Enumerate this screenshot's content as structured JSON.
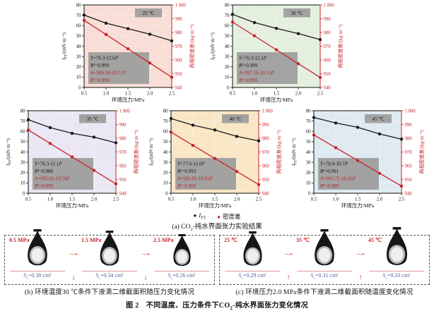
{
  "figure": {
    "panel_a_caption": "(a) CO_[2]-纯水界面张力实验结果",
    "main_caption": "图 2　不同温度、压力条件下CO_[2]-纯水界面张力变化情况"
  },
  "colors": {
    "series_ift": "#1a1a1a",
    "series_density": "#c7232b",
    "axis_red": "#c7232b",
    "annotation_bg": "#9e9e9e",
    "temp_box_bg": "#9e9e9e",
    "grid": "#ffffff",
    "area_text": "#4f639e",
    "arrow": "#c9452a",
    "panel_border": "#555555"
  },
  "legend": {
    "series": [
      {
        "label": "*I*_[FT]",
        "color": "#1a1a1a"
      },
      {
        "label": "密度差",
        "color": "#c7232b"
      }
    ]
  },
  "chart_data": {
    "type": "line",
    "x": [
      0.5,
      1.0,
      1.5,
      2.0,
      2.5
    ],
    "axes": {
      "x_label": "环境压力/MPa",
      "x_ticks": [
        0.5,
        1.0,
        1.5,
        2.0,
        2.5
      ],
      "left_label": "*I*_[FT]/(mN·m⁻¹)",
      "left_min": 0,
      "left_max": 80,
      "left_step": 10,
      "right_label": "两相密度差/(kg·m⁻³)",
      "right_min": 940,
      "right_max": 1000,
      "right_step": 10,
      "right_top_tick_text": "1 000",
      "grid": "dashed"
    },
    "charts": [
      {
        "temp": "25 ℃",
        "bg": "#f8ded6",
        "ift": [
          70.2,
          62.3,
          57.0,
          51.6,
          45.2
        ],
        "density": [
          988.8,
          978.5,
          968.1,
          957.8,
          947.4
        ],
        "fit_black": [
          "*Y*=76.3-12.6*P*",
          "*R*²=0.999"
        ],
        "fit_red": [
          "*A*=999.18-20.71*P*",
          "*R*²=0.990"
        ]
      },
      {
        "temp": "30 ℃",
        "bg": "#e4efde",
        "ift": [
          70.9,
          62.9,
          57.3,
          52.2,
          46.4
        ],
        "density": [
          987.5,
          977.5,
          967.4,
          957.3,
          947.3
        ],
        "fit_black": [
          "*Y*=76.3-12.1*P*",
          "*R*²=0.999"
        ],
        "fit_red": [
          "*A*=997.59-20.13*P*",
          "*R*²=0.999"
        ]
      },
      {
        "temp": "35 ℃",
        "bg": "#eae6f3",
        "ift": [
          71.3,
          63.6,
          58.1,
          54.4,
          48.9
        ],
        "density": [
          986.0,
          976.2,
          966.4,
          956.6,
          946.8
        ],
        "fit_black": [
          "*Y*=76.3-11.1*P*",
          "*R*²=0.986"
        ],
        "fit_red": [
          "*A*=995.81-19.59*P*",
          "*R*²=0.999"
        ]
      },
      {
        "temp": "40 ℃",
        "bg": "#f9e6c5",
        "ift": [
          72.4,
          66.0,
          61.3,
          55.1,
          50.8
        ],
        "density": [
          984.4,
          974.8,
          965.3,
          955.8,
          946.3
        ],
        "fit_black": [
          "*Y*=77.6-11.0*P*",
          "*R*²=0.993"
        ],
        "fit_red": [
          "*A*=993.85-19.01*P*",
          "*R*²=0.999"
        ]
      },
      {
        "temp": "45 ℃",
        "bg": "#dfe9f0",
        "ift": [
          73.4,
          68.1,
          63.9,
          57.5,
          52.4
        ],
        "density": [
          982.4,
          973.1,
          963.8,
          954.5,
          945.2
        ],
        "fit_black": [
          "*Y*=78.9-10.7*P*",
          "*R*²=0.991"
        ],
        "fit_red": [
          "*A*=991.72-18.62*P*",
          "*R*²=0.999"
        ]
      }
    ]
  },
  "droplet_panels": [
    {
      "id": "b",
      "caption": "(b) 环境温度30 ℃条件下液滴二维截面积随压力变化情况",
      "trend_arrow": "down",
      "items": [
        {
          "label": "0.5 MPa",
          "area": "*S*_[c]=0.38 cm²",
          "size": 1.0
        },
        {
          "label": "1.5 MPa",
          "area": "*S*_[c]=0.34 cm²",
          "size": 0.96
        },
        {
          "label": "2.5 MPa",
          "area": "*S*_[c]=0.26 cm²",
          "size": 0.88
        }
      ]
    },
    {
      "id": "c",
      "caption": "(c) 环境压力2.0 MPa条件下液滴二维截面积随温度变化情况",
      "trend_arrow": "up",
      "items": [
        {
          "label": "25 ℃",
          "area": "*S*_[c]=0.29 cm²",
          "size": 0.94
        },
        {
          "label": "35 ℃",
          "area": "*S*_[c]=0.31 cm²",
          "size": 1.0
        },
        {
          "label": "45 ℃",
          "area": "*S*_[c]=0.33 cm²",
          "size": 1.06
        }
      ]
    }
  ]
}
